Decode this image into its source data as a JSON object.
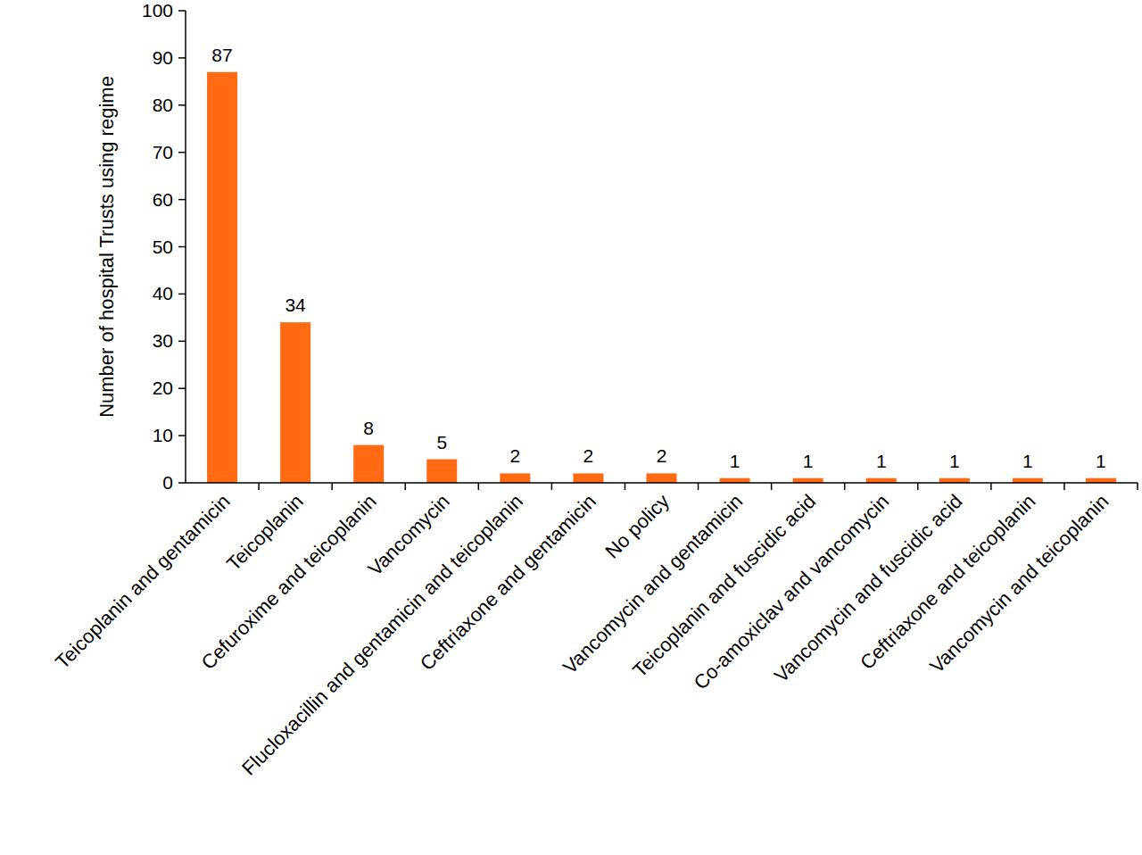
{
  "chart_data": {
    "type": "bar",
    "y_label": "Number of hospital Trusts using regime",
    "categories": [
      "Teicoplanin and gentamicin",
      "Teicoplanin",
      "Cefuroxime and teicoplanin",
      "Vancomycin",
      "Flucloxacillin and gentamicin and teicoplanin",
      "Ceftriaxone and gentamicin",
      "No policy",
      "Vancomycin and gentamicin",
      "Teicoplanin and fuscidic acid",
      "Co-amoxiclav and vancomycin",
      "Vancomycin and fuscidic acid",
      "Ceftriaxone and teicoplanin",
      "Vancomycin and teicoplanin"
    ],
    "values": [
      87,
      34,
      8,
      5,
      2,
      2,
      2,
      1,
      1,
      1,
      1,
      1,
      1
    ],
    "color": "#ff6a13",
    "ylim": [
      0,
      100
    ],
    "yticks": [
      0,
      10,
      20,
      30,
      40,
      50,
      60,
      70,
      80,
      90,
      100
    ],
    "grid": false,
    "data_labels": true
  }
}
